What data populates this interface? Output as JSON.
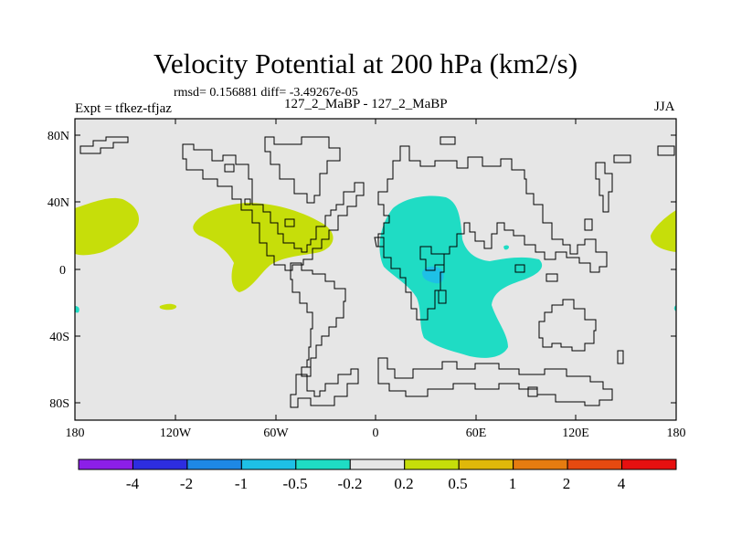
{
  "title": "Velocity Potential at 200 hPa (km2/s)",
  "stats": "rmsd= 0.156881 diff= -3.49267e-05",
  "expt": "Expt = tfkez-tfjaz",
  "subtitle": "127_2_MaBP - 127_2_MaBP",
  "season": "JJA",
  "lat_ticks": [
    "80N",
    "40N",
    "0",
    "40S",
    "80S"
  ],
  "lon_ticks": [
    "180",
    "120W",
    "60W",
    "0",
    "60E",
    "120E",
    "180"
  ],
  "colorbar": {
    "labels": [
      "-4",
      "-2",
      "-1",
      "-0.5",
      "-0.2",
      "0.2",
      "0.5",
      "1",
      "2",
      "4"
    ],
    "colors": [
      "#8c1fe8",
      "#2d2de0",
      "#1e88e5",
      "#1ec0e6",
      "#1fdcc4",
      "#e6e6e6",
      "#c6de0a",
      "#e0b80a",
      "#e67c10",
      "#e64a10",
      "#e61010"
    ]
  },
  "fill_colors": {
    "background": "#e6e6e6",
    "positive_small": "#c6de0a",
    "negative_small": "#1fdcc4",
    "negative_medium": "#1ec0e6"
  }
}
